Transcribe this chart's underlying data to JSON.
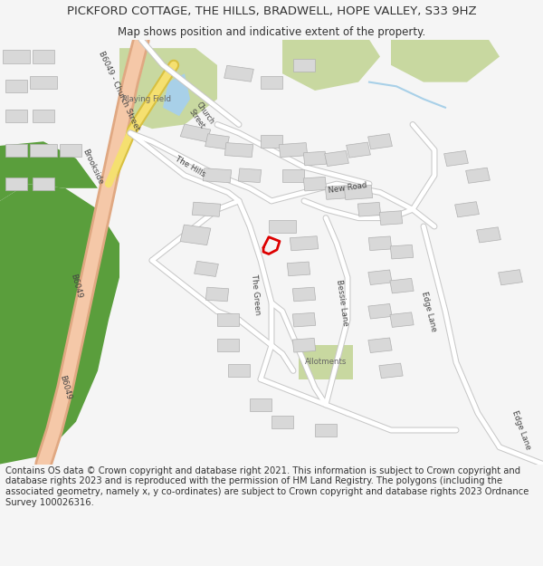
{
  "title_line1": "PICKFORD COTTAGE, THE HILLS, BRADWELL, HOPE VALLEY, S33 9HZ",
  "title_line2": "Map shows position and indicative extent of the property.",
  "footer_text": "Contains OS data © Crown copyright and database right 2021. This information is subject to Crown copyright and database rights 2023 and is reproduced with the permission of HM Land Registry. The polygons (including the associated geometry, namely x, y co-ordinates) are subject to Crown copyright and database rights 2023 Ordnance Survey 100026316.",
  "bg_color": "#f5f5f5",
  "map_bg": "#ffffff",
  "road_main_color": "#f5c8a8",
  "road_main_outline": "#e0a882",
  "road_yellow_color": "#f5e070",
  "road_yellow_outline": "#d8c040",
  "road_minor_color": "#ffffff",
  "road_minor_outline": "#c8c8c8",
  "green_light_color": "#c8d8a0",
  "green_dark_color": "#5a9e3c",
  "water_color": "#a8d0e8",
  "building_color": "#d8d8d8",
  "building_outline": "#b0b0b0",
  "property_color": "#dd0000",
  "text_color": "#333333",
  "label_color": "#444444",
  "title_fontsize": 9.5,
  "subtitle_fontsize": 8.5,
  "footer_fontsize": 7.2,
  "label_fontsize": 6.2
}
